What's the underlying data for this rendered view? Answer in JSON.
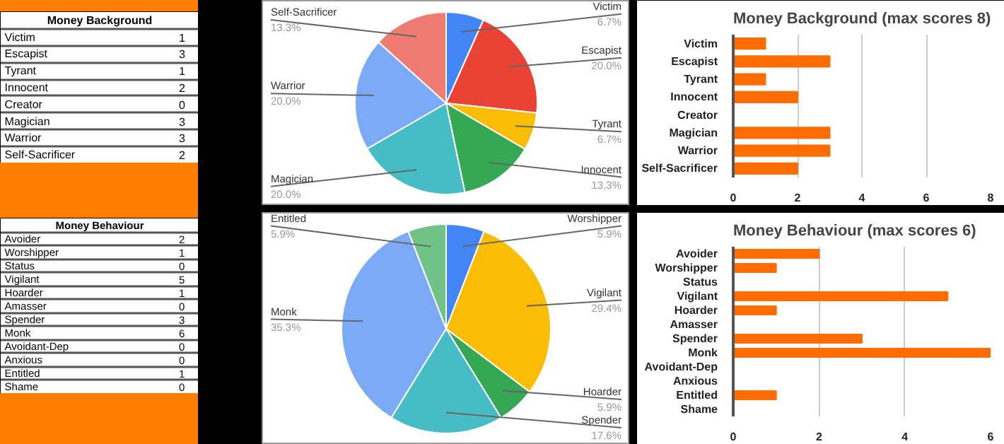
{
  "chart_data": [
    {
      "type": "other",
      "title": "Money Background",
      "categories": [
        "Victim",
        "Escapist",
        "Tyrant",
        "Innocent",
        "Creator",
        "Magician",
        "Warrior",
        "Self-Sacrificer"
      ],
      "values": [
        1,
        3,
        1,
        2,
        0,
        3,
        3,
        2
      ],
      "data_labels": true
    },
    {
      "type": "pie",
      "categories": [
        "Victim",
        "Escapist",
        "Tyrant",
        "Innocent",
        "Magician",
        "Warrior",
        "Self-Sacrificer"
      ],
      "values": [
        6.7,
        20.0,
        6.7,
        13.3,
        20.0,
        20.0,
        13.3
      ],
      "value_labels": [
        "6.7%",
        "20.0%",
        "6.7%",
        "13.3%",
        "20.0%",
        "20.0%",
        "13.3%"
      ],
      "colors": [
        "#4285f4",
        "#ea4335",
        "#fbbc04",
        "#34a853",
        "#46bdc6",
        "#7baaf7",
        "#f07b72"
      ]
    },
    {
      "type": "bar",
      "orientation": "horizontal",
      "title": "Money Background (max scores 8)",
      "categories": [
        "Victim",
        "Escapist",
        "Tyrant",
        "Innocent",
        "Creator",
        "Magician",
        "Warrior",
        "Self-Sacrificer"
      ],
      "values": [
        1,
        3,
        1,
        2,
        0,
        3,
        3,
        2
      ],
      "color": "#ff6d01",
      "xlim": [
        0,
        8
      ],
      "xticks": [
        0,
        2,
        4,
        6,
        8
      ],
      "grid": "x"
    },
    {
      "type": "other",
      "title": "Money Behaviour",
      "categories": [
        "Avoider",
        "Worshipper",
        "Status",
        "Vigilant",
        "Hoarder",
        "Amasser",
        "Spender",
        "Monk",
        "Avoidant-Dep",
        "Anxious",
        "Entitled",
        "Shame"
      ],
      "values": [
        2,
        1,
        0,
        5,
        1,
        0,
        3,
        6,
        0,
        0,
        1,
        0
      ],
      "data_labels": true
    },
    {
      "type": "pie",
      "categories": [
        "Worshipper",
        "Vigilant",
        "Hoarder",
        "Spender",
        "Monk",
        "Entitled"
      ],
      "values": [
        5.9,
        29.4,
        5.9,
        17.6,
        35.3,
        5.9
      ],
      "value_labels": [
        "5.9%",
        "29.4%",
        "5.9%",
        "17.6%",
        "35.3%",
        "5.9%"
      ],
      "colors": [
        "#4285f4",
        "#fbbc04",
        "#34a853",
        "#46bdc6",
        "#7baaf7",
        "#71c287"
      ]
    },
    {
      "type": "bar",
      "orientation": "horizontal",
      "title": "Money Behaviour (max scores 6)",
      "categories": [
        "Avoider",
        "Worshipper",
        "Status",
        "Vigilant",
        "Hoarder",
        "Amasser",
        "Spender",
        "Monk",
        "Avoidant-Dep",
        "Anxious",
        "Entitled",
        "Shame"
      ],
      "values": [
        2,
        1,
        0,
        5,
        1,
        0,
        3,
        6,
        0,
        0,
        1,
        0
      ],
      "color": "#ff6d01",
      "xlim": [
        0,
        6
      ],
      "xticks": [
        0,
        2,
        4,
        6
      ],
      "grid": "x"
    }
  ]
}
